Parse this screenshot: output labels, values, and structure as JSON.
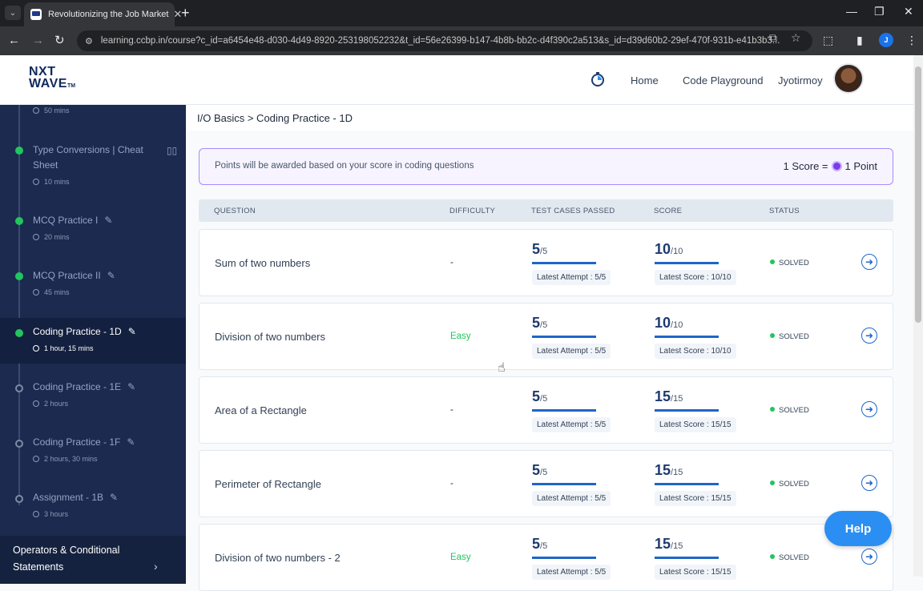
{
  "browser": {
    "tab_title": "Revolutionizing the Job Market",
    "url": "learning.ccbp.in/course?c_id=a6454e48-d030-4d49-8920-253198052232&t_id=56e26399-b147-4b8b-bb2c-d4f390c2a513&s_id=d39d60b2-29ef-470f-931b-e41b3b3...",
    "profile_initial": "J"
  },
  "header": {
    "logo_line1": "NXT",
    "logo_line2": "WAVE",
    "logo_tm": "TM",
    "nav": [
      "Home",
      "Code Playground"
    ],
    "user_name": "Jyotirmoy"
  },
  "sidebar": {
    "items": [
      {
        "title": "",
        "duration": "50 mins",
        "state": "done"
      },
      {
        "title": "Type Conversions | Cheat Sheet",
        "duration": "10 mins",
        "state": "done"
      },
      {
        "title": "MCQ Practice I",
        "duration": "20 mins",
        "state": "done"
      },
      {
        "title": "MCQ Practice II",
        "duration": "45 mins",
        "state": "done"
      },
      {
        "title": "Coding Practice - 1D",
        "duration": "1 hour, 15 mins",
        "state": "done",
        "active": true
      },
      {
        "title": "Coding Practice - 1E",
        "duration": "2 hours",
        "state": "todo"
      },
      {
        "title": "Coding Practice - 1F",
        "duration": "2 hours, 30 mins",
        "state": "todo"
      },
      {
        "title": "Assignment - 1B",
        "duration": "3 hours",
        "state": "todo"
      }
    ],
    "module": "Operators & Conditional Statements"
  },
  "main": {
    "breadcrumb": "I/O Basics > Coding Practice - 1D",
    "points_info": "Points will be awarded based on your score in coding questions",
    "score_rule_left": "1 Score =",
    "score_rule_right": "1 Point",
    "columns": [
      "QUESTION",
      "DIFFICULTY",
      "TEST CASES PASSED",
      "SCORE",
      "STATUS"
    ],
    "rows": [
      {
        "name": "Sum of two numbers",
        "difficulty": "-",
        "tc_passed": "5",
        "tc_total": "/5",
        "tc_latest": "Latest Attempt : 5/5",
        "score": "10",
        "score_total": "/10",
        "score_latest": "Latest Score : 10/10",
        "status": "SOLVED"
      },
      {
        "name": "Division of two numbers",
        "difficulty": "Easy",
        "tc_passed": "5",
        "tc_total": "/5",
        "tc_latest": "Latest Attempt : 5/5",
        "score": "10",
        "score_total": "/10",
        "score_latest": "Latest Score : 10/10",
        "status": "SOLVED"
      },
      {
        "name": "Area of a Rectangle",
        "difficulty": "-",
        "tc_passed": "5",
        "tc_total": "/5",
        "tc_latest": "Latest Attempt : 5/5",
        "score": "15",
        "score_total": "/15",
        "score_latest": "Latest Score : 15/15",
        "status": "SOLVED"
      },
      {
        "name": "Perimeter of Rectangle",
        "difficulty": "-",
        "tc_passed": "5",
        "tc_total": "/5",
        "tc_latest": "Latest Attempt : 5/5",
        "score": "15",
        "score_total": "/15",
        "score_latest": "Latest Score : 15/15",
        "status": "SOLVED"
      },
      {
        "name": "Division of two numbers - 2",
        "difficulty": "Easy",
        "tc_passed": "5",
        "tc_total": "/5",
        "tc_latest": "Latest Attempt : 5/5",
        "score": "15",
        "score_total": "/15",
        "score_latest": "Latest Score : 15/15",
        "status": "SOLVED"
      }
    ]
  },
  "help_label": "Help",
  "colors": {
    "accent": "#1e66c8",
    "solved": "#22c55e",
    "easy": "#22c55e",
    "sidebar": "#1b2a4e",
    "points_border": "#a78bfa"
  }
}
